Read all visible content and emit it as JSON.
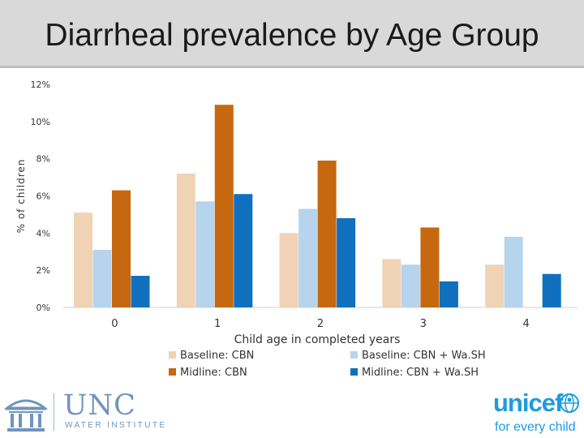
{
  "header": {
    "title": "Diarrheal prevalence by Age Group"
  },
  "chart_data": {
    "type": "bar",
    "title": "Diarrheal prevalence by Age Group",
    "xlabel": "Child age in completed years",
    "ylabel": "% of children",
    "categories": [
      "0",
      "1",
      "2",
      "3",
      "4"
    ],
    "yticks": [
      "0%",
      "2%",
      "4%",
      "6%",
      "8%",
      "10%",
      "12%"
    ],
    "ylim": [
      0,
      12
    ],
    "grid": false,
    "legend": "bottom",
    "series": [
      {
        "name": "Baseline: CBN",
        "color": "#efd3b4",
        "values": [
          5.1,
          7.2,
          4.0,
          2.6,
          2.3
        ]
      },
      {
        "name": "Baseline: CBN + Wa.SH",
        "color": "#b6d4ec",
        "values": [
          3.1,
          5.7,
          5.3,
          2.3,
          3.8
        ]
      },
      {
        "name": "Midline: CBN",
        "color": "#c5680f",
        "values": [
          6.3,
          10.9,
          7.9,
          4.3,
          null
        ]
      },
      {
        "name": "Midline: CBN + Wa.SH",
        "color": "#1070bd",
        "values": [
          1.7,
          6.1,
          4.8,
          1.4,
          1.8
        ]
      }
    ]
  },
  "footer": {
    "unc_name": "UNC",
    "unc_sub": "WATER INSTITUTE",
    "unicef": "unicef",
    "tagline": "for every child"
  }
}
